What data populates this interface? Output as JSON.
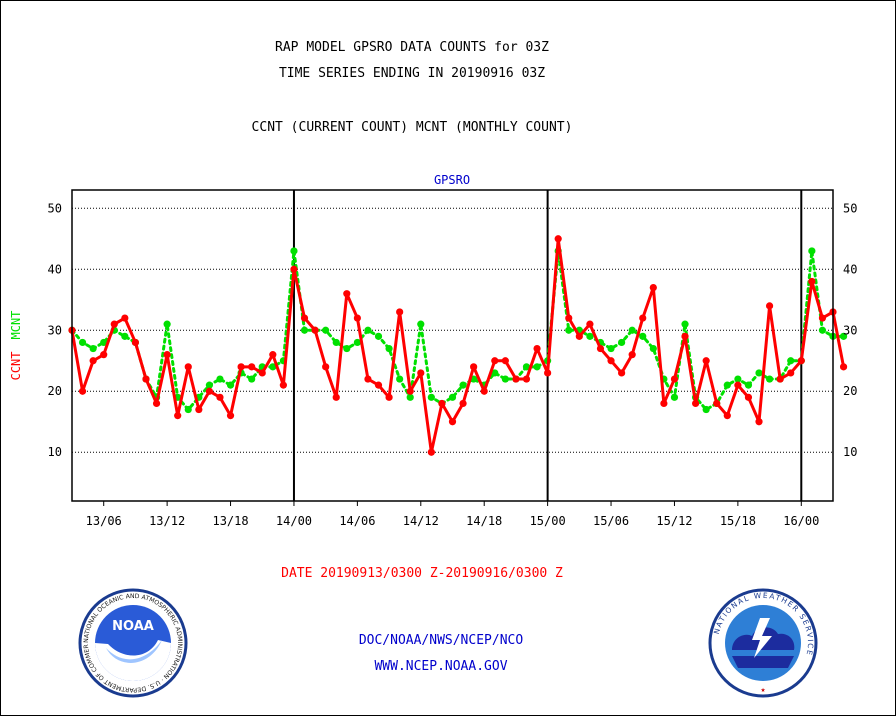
{
  "header": {
    "line1": "RAP MODEL GPSRO DATA COUNTS for 03Z",
    "line2": "TIME SERIES ENDING IN 20190916 03Z",
    "line3": "CCNT (CURRENT COUNT) MCNT (MONTHLY COUNT)"
  },
  "footer": {
    "date_range": "DATE 20190913/0300 Z-20190916/0300 Z",
    "org": "DOC/NOAA/NWS/NCEP/NCO",
    "url": "WWW.NCEP.NOAA.GOV"
  },
  "logos": {
    "noaa_text": "NOAA",
    "noaa_ring": "NATIONAL OCEANIC AND ATMOSPHERIC ADMINISTRATION · U.S. DEPARTMENT OF COMMERCE",
    "nws_ring": "NATIONAL WEATHER SERVICE"
  },
  "colors": {
    "ccnt": "#ff0000",
    "mcnt": "#00e000",
    "title_blue": "#0000cc",
    "date_red": "#ff0000"
  },
  "chart_data": {
    "type": "line",
    "title": "GPSRO",
    "ylabel_parts": [
      {
        "text": "CCNT",
        "color": "#ff0000"
      },
      {
        "text": "MCNT",
        "color": "#00e000"
      }
    ],
    "x_range": [
      0,
      72
    ],
    "ylim": [
      2,
      53
    ],
    "yticks": [
      10,
      20,
      30,
      40,
      50
    ],
    "xticks": [
      {
        "x": 3,
        "label": "13/06"
      },
      {
        "x": 9,
        "label": "13/12"
      },
      {
        "x": 15,
        "label": "13/18"
      },
      {
        "x": 21,
        "label": "14/00"
      },
      {
        "x": 27,
        "label": "14/06"
      },
      {
        "x": 33,
        "label": "14/12"
      },
      {
        "x": 39,
        "label": "14/18"
      },
      {
        "x": 45,
        "label": "15/00"
      },
      {
        "x": 51,
        "label": "15/06"
      },
      {
        "x": 57,
        "label": "15/12"
      },
      {
        "x": 63,
        "label": "15/18"
      },
      {
        "x": 69,
        "label": "16/00"
      }
    ],
    "day_lines": [
      21,
      45,
      69
    ],
    "grid": true,
    "series": [
      {
        "name": "CCNT",
        "style": "solid",
        "values": [
          30,
          20,
          25,
          26,
          31,
          32,
          28,
          22,
          18,
          26,
          16,
          24,
          17,
          20,
          19,
          16,
          24,
          24,
          23,
          26,
          21,
          40,
          32,
          30,
          24,
          19,
          36,
          32,
          22,
          21,
          19,
          33,
          20,
          23,
          10,
          18,
          15,
          18,
          24,
          20,
          25,
          25,
          22,
          22,
          27,
          23,
          45,
          32,
          29,
          31,
          27,
          25,
          23,
          26,
          32,
          37,
          18,
          22,
          29,
          18,
          25,
          18,
          16,
          21,
          19,
          15,
          34,
          22,
          23,
          25,
          38,
          32,
          33,
          24
        ]
      },
      {
        "name": "MCNT",
        "style": "dotted",
        "values": [
          30,
          28,
          27,
          28,
          30,
          29,
          28,
          22,
          19,
          31,
          19,
          17,
          19,
          21,
          22,
          21,
          23,
          22,
          24,
          24,
          25,
          43,
          30,
          30,
          30,
          28,
          27,
          28,
          30,
          29,
          27,
          22,
          19,
          31,
          19,
          18,
          19,
          21,
          22,
          21,
          23,
          22,
          22,
          24,
          24,
          25,
          43,
          30,
          30,
          29,
          28,
          27,
          28,
          30,
          29,
          27,
          22,
          19,
          31,
          19,
          17,
          18,
          21,
          22,
          21,
          23,
          22,
          22,
          25,
          25,
          43,
          30,
          29,
          29
        ]
      }
    ]
  }
}
